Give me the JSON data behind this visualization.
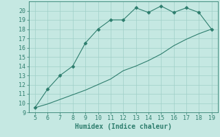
{
  "xlabel": "Humidex (Indice chaleur)",
  "line1_x": [
    5,
    6,
    7,
    8,
    9,
    10,
    11,
    12,
    13,
    14,
    15,
    16,
    17,
    18,
    19
  ],
  "line1_y": [
    9.5,
    11.5,
    13.0,
    14.0,
    16.5,
    18.0,
    19.0,
    19.0,
    20.3,
    19.8,
    20.5,
    19.8,
    20.3,
    19.8,
    18.0
  ],
  "line2_x": [
    5,
    6,
    7,
    8,
    9,
    10,
    11,
    12,
    13,
    14,
    15,
    16,
    17,
    18,
    19
  ],
  "line2_y": [
    9.5,
    9.9,
    10.4,
    10.9,
    11.4,
    12.0,
    12.6,
    13.5,
    14.0,
    14.6,
    15.3,
    16.2,
    16.9,
    17.5,
    18.0
  ],
  "line_color": "#2d7d6d",
  "bg_color": "#c5e8e2",
  "grid_color": "#9fcfc7",
  "xlim": [
    4.5,
    19.5
  ],
  "ylim": [
    9,
    21
  ],
  "xticks": [
    5,
    6,
    7,
    8,
    9,
    10,
    11,
    12,
    13,
    14,
    15,
    16,
    17,
    18,
    19
  ],
  "yticks": [
    9,
    10,
    11,
    12,
    13,
    14,
    15,
    16,
    17,
    18,
    19,
    20
  ],
  "tick_fontsize": 6,
  "xlabel_fontsize": 7,
  "marker": "D",
  "marker_size": 2.5
}
